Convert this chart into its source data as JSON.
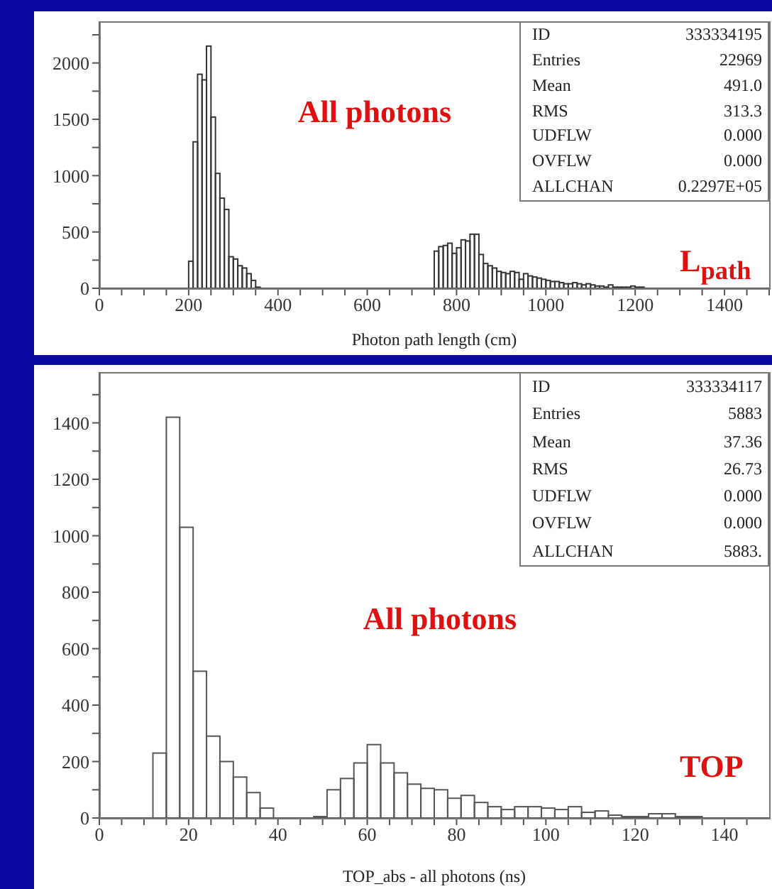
{
  "chart_data": [
    {
      "type": "histogram",
      "xlabel": "Photon path length (cm)",
      "color": "#333333",
      "bins": [
        200,
        210,
        220,
        230,
        240,
        250,
        260,
        270,
        280,
        290,
        300,
        310,
        320,
        330,
        340,
        350,
        360,
        370,
        380,
        390,
        400,
        410,
        420,
        430,
        440,
        450,
        460,
        470,
        480,
        490,
        500,
        510,
        520,
        530,
        540,
        550,
        560,
        570,
        580,
        590,
        600,
        610,
        620,
        630,
        640,
        650,
        660,
        670,
        680,
        690,
        700,
        710,
        720,
        730,
        740,
        750,
        760,
        770,
        780,
        790,
        800,
        810,
        820,
        830,
        840,
        850,
        860,
        870,
        880,
        890,
        900,
        910,
        920,
        930,
        940,
        950,
        960,
        970,
        980,
        990,
        1000,
        1010,
        1020,
        1030,
        1040,
        1050,
        1060,
        1070,
        1080,
        1090,
        1100,
        1110,
        1120,
        1130,
        1140,
        1150,
        1160,
        1170,
        1180,
        1190,
        1200,
        1210,
        1220,
        1230,
        1240,
        1250
      ],
      "values": [
        240,
        1300,
        1900,
        1850,
        2150,
        1520,
        1020,
        800,
        700,
        280,
        260,
        200,
        180,
        130,
        70,
        10,
        0,
        0,
        0,
        0,
        0,
        0,
        0,
        0,
        0,
        0,
        0,
        0,
        0,
        0,
        0,
        0,
        0,
        0,
        0,
        0,
        0,
        0,
        0,
        0,
        0,
        0,
        0,
        0,
        0,
        0,
        0,
        0,
        0,
        0,
        0,
        0,
        0,
        0,
        0,
        330,
        370,
        380,
        400,
        310,
        360,
        430,
        420,
        480,
        480,
        300,
        220,
        200,
        180,
        150,
        140,
        130,
        150,
        140,
        80,
        130,
        110,
        100,
        90,
        80,
        70,
        60,
        60,
        50,
        40,
        40,
        50,
        40,
        30,
        40,
        30,
        20,
        20,
        10,
        30,
        10,
        10,
        10,
        10,
        20,
        10,
        10,
        0,
        0,
        0
      ],
      "xlim": [
        0,
        1500
      ],
      "ylim": [
        0,
        2370
      ],
      "xticks": [
        0,
        {
          "value": 50,
          "label": null
        },
        {
          "value": 100,
          "label": null
        },
        {
          "value": 150,
          "label": null
        },
        200,
        {
          "value": 250,
          "label": null
        },
        {
          "value": 300,
          "label": null
        },
        {
          "value": 350,
          "label": null
        },
        400,
        {
          "value": 450,
          "label": null
        },
        {
          "value": 500,
          "label": null
        },
        {
          "value": 550,
          "label": null
        },
        600,
        {
          "value": 650,
          "label": null
        },
        {
          "value": 700,
          "label": null
        },
        {
          "value": 750,
          "label": null
        },
        800,
        {
          "value": 850,
          "label": null
        },
        {
          "value": 900,
          "label": null
        },
        {
          "value": 950,
          "label": null
        },
        1000,
        {
          "value": 1050,
          "label": null
        },
        {
          "value": 1100,
          "label": null
        },
        {
          "value": 1150,
          "label": null
        },
        1200,
        {
          "value": 1250,
          "label": null
        },
        {
          "value": 1300,
          "label": null
        },
        {
          "value": 1350,
          "label": null
        },
        1400,
        {
          "value": 1450,
          "label": null
        },
        {
          "value": 1500,
          "label": null
        }
      ],
      "yticks": [
        0,
        {
          "value": 250,
          "label": null
        },
        500,
        {
          "value": 750,
          "label": null
        },
        1000,
        {
          "value": 1250,
          "label": null
        },
        1500,
        {
          "value": 1750,
          "label": null
        },
        2000,
        {
          "value": 2250,
          "label": null
        }
      ],
      "annotations": [
        "ID",
        "333334195",
        "Entries",
        "22969",
        "Mean",
        "491.0",
        "RMS",
        "313.3",
        "UDFLW",
        "0.000",
        "OVFLW",
        "0.000",
        "ALLCHAN",
        "0.2297E+05",
        "All photons",
        "L$_{path}$"
      ]
    },
    {
      "type": "histogram",
      "xlabel": "TOP_abs - all photons (ns)",
      "color": "#555555",
      "bins": [
        12,
        15,
        18,
        21,
        24,
        27,
        30,
        33,
        36,
        39,
        42,
        45,
        48,
        51,
        54,
        57,
        60,
        63,
        66,
        69,
        72,
        75,
        78,
        81,
        84,
        87,
        90,
        93,
        96,
        99,
        102,
        105,
        108,
        111,
        114,
        117,
        120,
        123,
        126,
        129,
        132,
        135
      ],
      "values": [
        230,
        1420,
        1030,
        520,
        290,
        200,
        145,
        90,
        35,
        0,
        0,
        0,
        5,
        100,
        140,
        195,
        260,
        195,
        160,
        120,
        105,
        100,
        70,
        80,
        55,
        40,
        30,
        40,
        40,
        35,
        30,
        40,
        20,
        25,
        10,
        5,
        5,
        15,
        15,
        5,
        5
      ],
      "xlim": [
        0,
        150
      ],
      "ylim": [
        0,
        1580
      ],
      "xticks": [
        0,
        {
          "value": 5,
          "label": null
        },
        {
          "value": 10,
          "label": null
        },
        {
          "value": 15,
          "label": null
        },
        20,
        {
          "value": 25,
          "label": null
        },
        {
          "value": 30,
          "label": null
        },
        {
          "value": 35,
          "label": null
        },
        40,
        {
          "value": 45,
          "label": null
        },
        {
          "value": 50,
          "label": null
        },
        {
          "value": 55,
          "label": null
        },
        60,
        {
          "value": 65,
          "label": null
        },
        {
          "value": 70,
          "label": null
        },
        {
          "value": 75,
          "label": null
        },
        80,
        {
          "value": 85,
          "label": null
        },
        {
          "value": 90,
          "label": null
        },
        {
          "value": 95,
          "label": null
        },
        100,
        {
          "value": 105,
          "label": null
        },
        {
          "value": 110,
          "label": null
        },
        {
          "value": 115,
          "label": null
        },
        120,
        {
          "value": 125,
          "label": null
        },
        {
          "value": 130,
          "label": null
        },
        {
          "value": 135,
          "label": null
        },
        140,
        {
          "value": 145,
          "label": null
        }
      ],
      "yticks": [
        0,
        {
          "value": 100,
          "label": null
        },
        200,
        {
          "value": 300,
          "label": null
        },
        400,
        {
          "value": 500,
          "label": null
        },
        600,
        {
          "value": 700,
          "label": null
        },
        800,
        {
          "value": 900,
          "label": null
        },
        1000,
        {
          "value": 1100,
          "label": null
        },
        1200,
        {
          "value": 1300,
          "label": null
        },
        1400,
        {
          "value": 1500,
          "label": null
        }
      ],
      "annotations": [
        "ID",
        "333334117",
        "Entries",
        "5883",
        "Mean",
        "37.36",
        "RMS",
        "26.73",
        "UDFLW",
        "0.000",
        "OVFLW",
        "0.000",
        "ALLCHAN",
        "5883.",
        "All photons",
        "TOP"
      ]
    }
  ]
}
